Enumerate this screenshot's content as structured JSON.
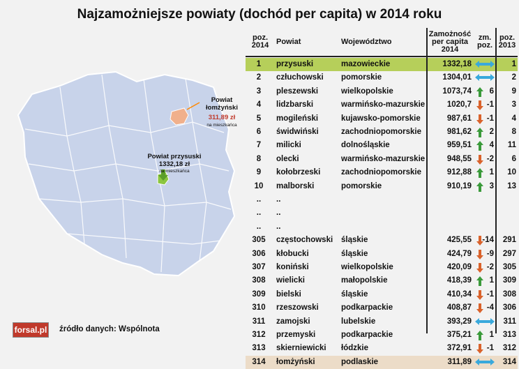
{
  "title": "Najzamożniejsze powiaty (dochód per capita) w 2014 roku",
  "headers": {
    "poz2014": [
      "poz.",
      "2014"
    ],
    "powiat": "Powiat",
    "woj": "Województwo",
    "zam": [
      "Zamożność",
      "per capita",
      "2014"
    ],
    "zm": [
      "zm.",
      "poz."
    ],
    "poz2013": [
      "poz.",
      "2013"
    ]
  },
  "map_labels": {
    "lomza_title": [
      "Powiat",
      "łomżyński"
    ],
    "lomza_value": "311,89 zł",
    "lomza_unit": "na mieszkańca",
    "przysuski_title": "Powiat przysuski",
    "przysuski_value": "1332,18 zł",
    "przysuski_unit": "na mieszkańca"
  },
  "colors": {
    "highlight_top": "#b6cf5a",
    "highlight_bottom": "#ecdcc8",
    "up": "#3a9a3a",
    "down": "#d9622b",
    "same": "#39a9dc",
    "map_fill": "#c8d3ea"
  },
  "source": "źródło danych: Wspólnota",
  "logo": "forsal.pl",
  "chart_data": {
    "type": "table",
    "title": "Najzamożniejsze powiaty (dochód per capita) w 2014 roku",
    "columns": [
      "poz. 2014",
      "Powiat",
      "Województwo",
      "Zamożność per capita 2014",
      "zm. poz.",
      "poz. 2013"
    ],
    "rows": [
      {
        "poz": "1",
        "powiat": "przysuski",
        "woj": "mazowieckie",
        "value": "1332,18",
        "trend": "same",
        "change": "",
        "poz2013": "1",
        "hl": "green"
      },
      {
        "poz": "2",
        "powiat": "człuchowski",
        "woj": "pomorskie",
        "value": "1304,01",
        "trend": "same",
        "change": "",
        "poz2013": "2"
      },
      {
        "poz": "3",
        "powiat": "pleszewski",
        "woj": "wielkopolskie",
        "value": "1073,74",
        "trend": "up",
        "change": "6",
        "poz2013": "9"
      },
      {
        "poz": "4",
        "powiat": "lidzbarski",
        "woj": "warmińsko-mazurskie",
        "value": "1020,7",
        "trend": "down",
        "change": "-1",
        "poz2013": "3"
      },
      {
        "poz": "5",
        "powiat": "mogileński",
        "woj": "kujawsko-pomorskie",
        "value": "987,61",
        "trend": "down",
        "change": "-1",
        "poz2013": "4"
      },
      {
        "poz": "6",
        "powiat": "świdwiński",
        "woj": "zachodniopomorskie",
        "value": "981,62",
        "trend": "up",
        "change": "2",
        "poz2013": "8"
      },
      {
        "poz": "7",
        "powiat": "milicki",
        "woj": "dolnośląskie",
        "value": "959,51",
        "trend": "up",
        "change": "4",
        "poz2013": "11"
      },
      {
        "poz": "8",
        "powiat": "olecki",
        "woj": "warmińsko-mazurskie",
        "value": "948,55",
        "trend": "down",
        "change": "-2",
        "poz2013": "6"
      },
      {
        "poz": "9",
        "powiat": "kołobrzeski",
        "woj": "zachodniopomorskie",
        "value": "912,88",
        "trend": "up",
        "change": "1",
        "poz2013": "10"
      },
      {
        "poz": "10",
        "powiat": "malborski",
        "woj": "pomorskie",
        "value": "910,19",
        "trend": "up",
        "change": "3",
        "poz2013": "13"
      },
      {
        "poz": "..",
        "powiat": "..",
        "woj": "",
        "value": "",
        "trend": "",
        "change": "",
        "poz2013": ""
      },
      {
        "poz": "..",
        "powiat": "..",
        "woj": "",
        "value": "",
        "trend": "",
        "change": "",
        "poz2013": ""
      },
      {
        "poz": "..",
        "powiat": "..",
        "woj": "",
        "value": "",
        "trend": "",
        "change": "",
        "poz2013": ""
      },
      {
        "poz": "305",
        "powiat": "częstochowski",
        "woj": "śląskie",
        "value": "425,55",
        "trend": "down",
        "change": "-14",
        "poz2013": "291"
      },
      {
        "poz": "306",
        "powiat": "kłobucki",
        "woj": "śląskie",
        "value": "424,79",
        "trend": "down",
        "change": "-9",
        "poz2013": "297"
      },
      {
        "poz": "307",
        "powiat": "koniński",
        "woj": "wielkopolskie",
        "value": "420,09",
        "trend": "down",
        "change": "-2",
        "poz2013": "305"
      },
      {
        "poz": "308",
        "powiat": "wielicki",
        "woj": "małopolskie",
        "value": "418,39",
        "trend": "up",
        "change": "1",
        "poz2013": "309"
      },
      {
        "poz": "309",
        "powiat": "bielski",
        "woj": "śląskie",
        "value": "410,34",
        "trend": "down",
        "change": "-1",
        "poz2013": "308"
      },
      {
        "poz": "310",
        "powiat": "rzeszowski",
        "woj": "podkarpackie",
        "value": "408,87",
        "trend": "down",
        "change": "-4",
        "poz2013": "306"
      },
      {
        "poz": "311",
        "powiat": "zamojski",
        "woj": "lubelskie",
        "value": "393,29",
        "trend": "same",
        "change": "",
        "poz2013": "311"
      },
      {
        "poz": "312",
        "powiat": "przemyski",
        "woj": "podkarpackie",
        "value": "375,21",
        "trend": "up",
        "change": "1",
        "poz2013": "313"
      },
      {
        "poz": "313",
        "powiat": "skierniewicki",
        "woj": "łódzkie",
        "value": "372,91",
        "trend": "down",
        "change": "-1",
        "poz2013": "312"
      },
      {
        "poz": "314",
        "powiat": "łomżyński",
        "woj": "podlaskie",
        "value": "311,89",
        "trend": "same",
        "change": "",
        "poz2013": "314",
        "hl": "beige"
      }
    ]
  }
}
